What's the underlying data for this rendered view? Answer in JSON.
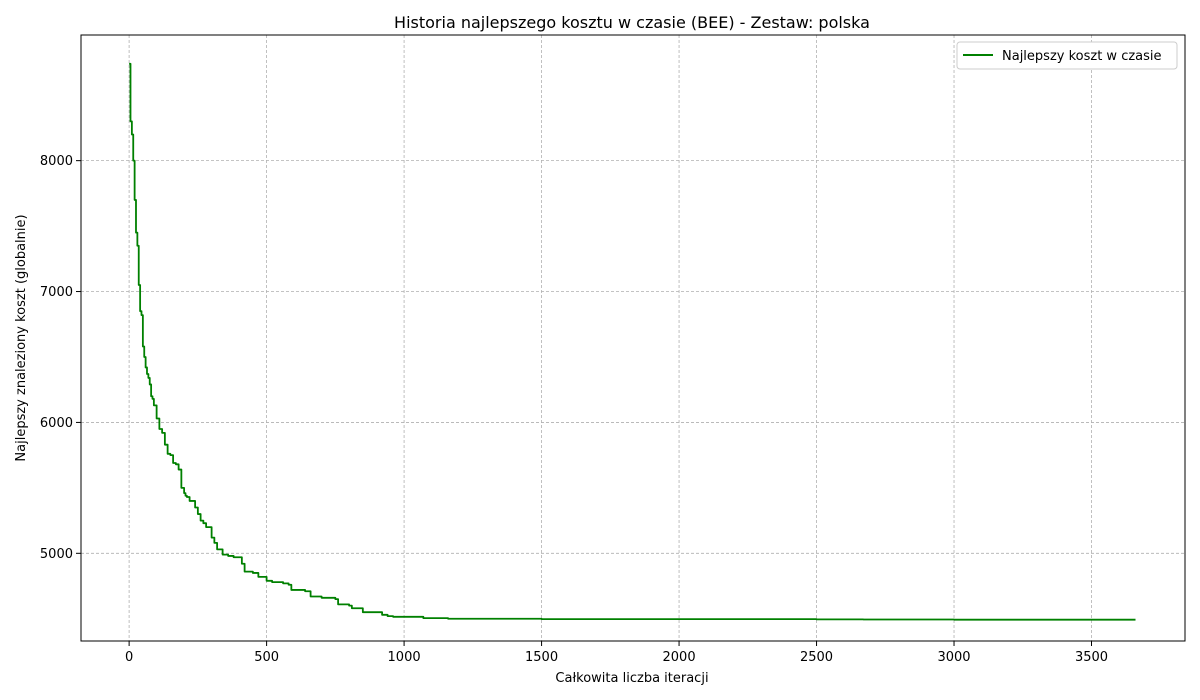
{
  "chart_data": {
    "type": "line",
    "title": "Historia najlepszego kosztu w czasie (BEE) - Zestaw: polska",
    "xlabel": "Całkowita liczba iteracji",
    "ylabel": "Najlepszy znaleziony koszt (globalnie)",
    "xlim": [
      -175,
      3840
    ],
    "ylim": [
      4330,
      8960
    ],
    "xticks": [
      0,
      500,
      1000,
      1500,
      2000,
      2500,
      3000,
      3500
    ],
    "yticks": [
      5000,
      6000,
      7000,
      8000
    ],
    "grid": true,
    "legend_position": "top-right",
    "series": [
      {
        "name": "Najlepszy koszt w czasie",
        "color": "#008000",
        "x": [
          0,
          5,
          10,
          15,
          20,
          25,
          30,
          35,
          40,
          45,
          50,
          55,
          60,
          65,
          70,
          75,
          80,
          85,
          90,
          100,
          110,
          120,
          130,
          140,
          150,
          160,
          170,
          180,
          190,
          200,
          205,
          210,
          220,
          230,
          240,
          250,
          260,
          270,
          280,
          300,
          310,
          320,
          340,
          360,
          380,
          400,
          410,
          420,
          450,
          470,
          500,
          520,
          560,
          580,
          590,
          640,
          660,
          700,
          750,
          760,
          800,
          810,
          850,
          860,
          920,
          940,
          960,
          1000,
          1070,
          1160,
          1500,
          2000,
          2270,
          2500,
          2670,
          3000,
          3500,
          3660
        ],
        "y": [
          8740,
          8300,
          8200,
          8000,
          7700,
          7450,
          7350,
          7050,
          6850,
          6820,
          6580,
          6500,
          6420,
          6370,
          6340,
          6290,
          6200,
          6180,
          6130,
          6030,
          5950,
          5920,
          5830,
          5760,
          5750,
          5690,
          5680,
          5640,
          5500,
          5460,
          5440,
          5430,
          5400,
          5400,
          5350,
          5300,
          5250,
          5230,
          5200,
          5120,
          5080,
          5030,
          4990,
          4980,
          4970,
          4970,
          4920,
          4860,
          4850,
          4820,
          4790,
          4780,
          4770,
          4760,
          4720,
          4710,
          4670,
          4660,
          4650,
          4610,
          4600,
          4580,
          4550,
          4550,
          4530,
          4520,
          4515,
          4515,
          4505,
          4500,
          4497,
          4497,
          4497,
          4495,
          4494,
          4493,
          4493,
          4493
        ]
      }
    ]
  }
}
